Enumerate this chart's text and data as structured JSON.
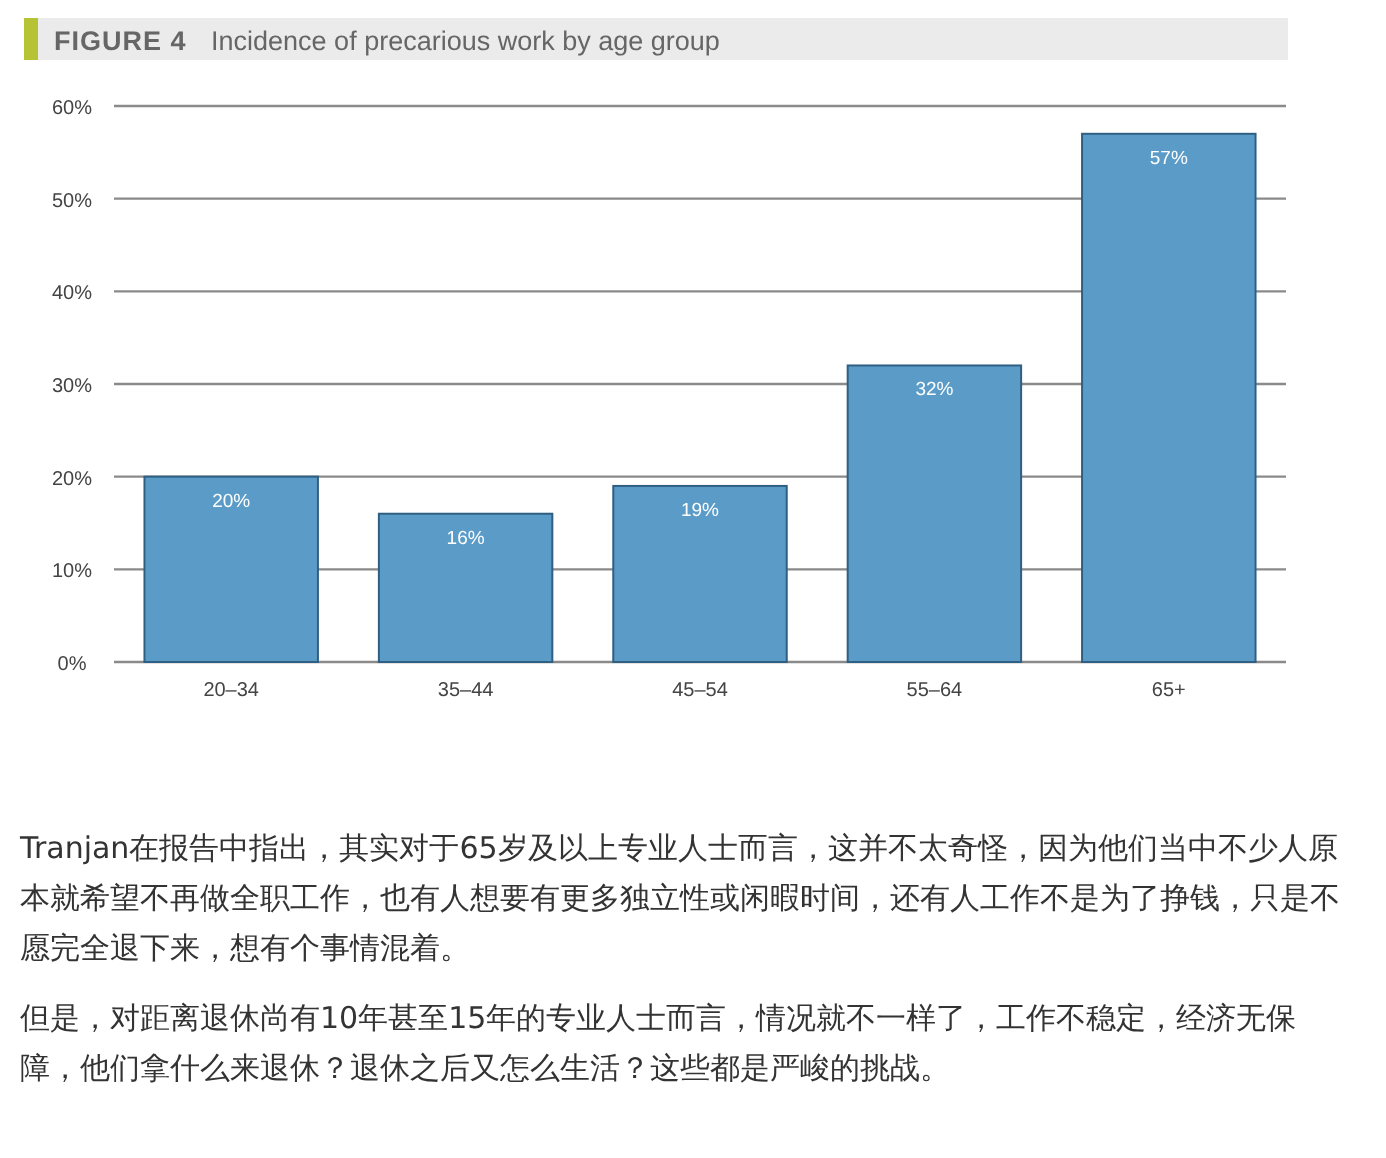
{
  "chart_data": {
    "type": "bar",
    "title": "**FIGURE 4** Incidence of precarious work by age group",
    "categories": [
      "20–34",
      "35–44",
      "45–54",
      "55–64",
      "65+"
    ],
    "values": [
      20,
      16,
      19,
      32,
      57
    ],
    "color": "#5b9bc8",
    "value_labels": [
      "20%",
      "16%",
      "19%",
      "32%",
      "57%"
    ],
    "ylim": [
      0,
      60
    ],
    "yticks": [
      {
        "value": 0,
        "label": "0%"
      },
      {
        "value": 10,
        "label": "10%"
      },
      {
        "value": 20,
        "label": "20%"
      },
      {
        "value": 30,
        "label": "30%"
      },
      {
        "value": 40,
        "label": "40%"
      },
      {
        "value": 50,
        "label": "50%"
      },
      {
        "value": 60,
        "label": "60%"
      }
    ],
    "grid": "y",
    "annotations": [
      "Tranjan在报告中指出，其实对于65岁及以上专业人士而言，这并不太奇怪，因为他们当中不少人原本就希望不再做全职工作，也有人想要有更多独立性或闲暇时间，还有人工作不是为了挣钱，只是不愿完全退下来，想有个事情混着。",
      "但是，对距离退休尚有10年甚至15年的专业人士而言，情况就不一样了，工作不稳定，经济无保障，他们拿什么来退休？退休之后又怎么生活？这些都是严峻的挑战。"
    ]
  }
}
